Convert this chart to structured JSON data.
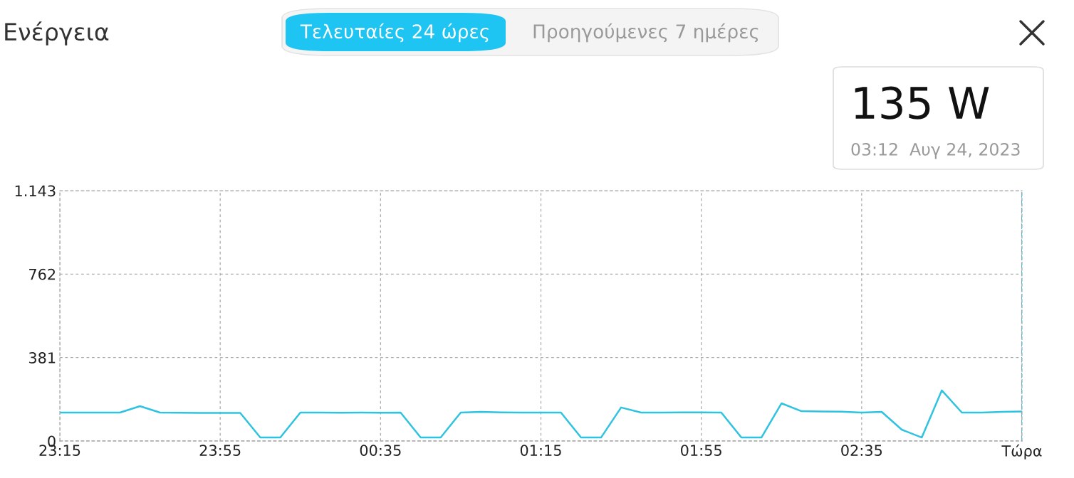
{
  "chart_data": {
    "type": "line",
    "title": "Ενέργεια",
    "x": [
      "2023-08-23T23:15",
      "2023-08-23T23:20",
      "2023-08-23T23:25",
      "2023-08-23T23:30",
      "2023-08-23T23:35",
      "2023-08-23T23:40",
      "2023-08-23T23:45",
      "2023-08-23T23:50",
      "2023-08-23T23:55",
      "2023-08-24T00:00",
      "2023-08-24T00:05",
      "2023-08-24T00:10",
      "2023-08-24T00:15",
      "2023-08-24T00:20",
      "2023-08-24T00:25",
      "2023-08-24T00:30",
      "2023-08-24T00:35",
      "2023-08-24T00:40",
      "2023-08-24T00:45",
      "2023-08-24T00:50",
      "2023-08-24T00:55",
      "2023-08-24T01:00",
      "2023-08-24T01:05",
      "2023-08-24T01:10",
      "2023-08-24T01:15",
      "2023-08-24T01:20",
      "2023-08-24T01:25",
      "2023-08-24T01:30",
      "2023-08-24T01:35",
      "2023-08-24T01:40",
      "2023-08-24T01:45",
      "2023-08-24T01:50",
      "2023-08-24T01:55",
      "2023-08-24T02:00",
      "2023-08-24T02:05",
      "2023-08-24T02:10",
      "2023-08-24T02:15",
      "2023-08-24T02:20",
      "2023-08-24T02:25",
      "2023-08-24T02:30",
      "2023-08-24T02:35",
      "2023-08-24T02:40",
      "2023-08-24T02:45",
      "2023-08-24T02:50",
      "2023-08-24T02:55",
      "2023-08-24T03:00",
      "2023-08-24T03:05",
      "2023-08-24T03:10",
      "2023-08-24T03:15"
    ],
    "series": [
      {
        "color": "#2fc3e0",
        "values": [
          130,
          130,
          130,
          130,
          159,
          130,
          129,
          128,
          128,
          128,
          16,
          16,
          130,
          130,
          129,
          130,
          129,
          130,
          16,
          16,
          130,
          133,
          131,
          130,
          130,
          130,
          16,
          16,
          153,
          130,
          130,
          131,
          131,
          130,
          16,
          16,
          172,
          136,
          135,
          134,
          130,
          133,
          52,
          16,
          231,
          130,
          130,
          133,
          135
        ]
      }
    ],
    "xlim": [
      "2023-08-23T23:15",
      "2023-08-24T03:15"
    ],
    "xticks": [
      {
        "value": "2023-08-23T23:15",
        "label": "23:15"
      },
      {
        "value": "2023-08-23T23:55",
        "label": "23:55"
      },
      {
        "value": "2023-08-24T00:35",
        "label": "00:35"
      },
      {
        "value": "2023-08-24T01:15",
        "label": "01:15"
      },
      {
        "value": "2023-08-24T01:55",
        "label": "01:55"
      },
      {
        "value": "2023-08-24T02:35",
        "label": "02:35"
      },
      {
        "value": "2023-08-24T03:15",
        "label": "Τώρα"
      }
    ],
    "ylim": [
      0,
      1143
    ],
    "yticks": [
      0,
      381,
      762,
      {
        "value": 1143,
        "label": "1.143"
      }
    ],
    "grid": true,
    "line_style": "solid",
    "ref_lines": [
      {
        "axis": "x",
        "value": "2023-08-24T03:15",
        "color": "#2fc3e0",
        "line_style": "dashed"
      }
    ],
    "annotations": [
      "Τελευταίες 24 ώρες",
      "Προηγούμενες 7 ημέρες",
      "135 W",
      "03:12  Αυγ 24, 2023"
    ]
  }
}
